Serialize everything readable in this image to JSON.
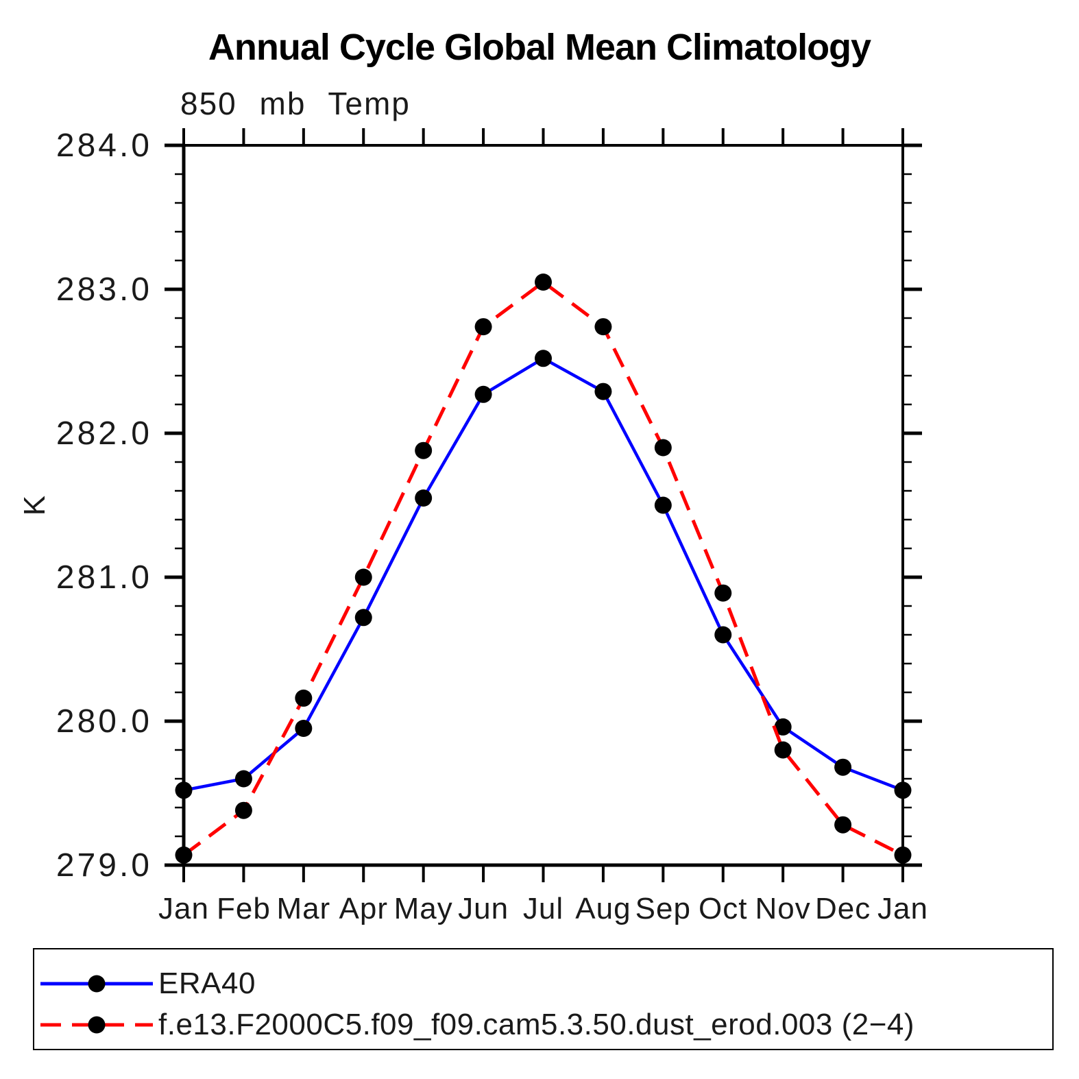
{
  "page": {
    "background_color": "#ffffff"
  },
  "chart_data": {
    "type": "line",
    "title": "Annual Cycle Global Mean Climatology",
    "subtitle": "850 mb Temp",
    "xlabel": "",
    "ylabel": "K",
    "categories": [
      "Jan",
      "Feb",
      "Mar",
      "Apr",
      "May",
      "Jun",
      "Jul",
      "Aug",
      "Sep",
      "Oct",
      "Nov",
      "Dec",
      "Jan"
    ],
    "series": [
      {
        "name": "ERA40",
        "color": "#0000ff",
        "line_style": "solid",
        "line_width": 4.5,
        "marker": "circle",
        "marker_color": "#000000",
        "values": [
          279.52,
          279.6,
          279.95,
          280.72,
          281.55,
          282.27,
          282.52,
          282.29,
          281.5,
          280.6,
          279.96,
          279.68,
          279.52
        ]
      },
      {
        "name": "f.e13.F2000C5.f09_f09.cam5.3.50.dust_erod.003 (2−4)",
        "color": "#ff0000",
        "line_style": "dashed",
        "line_width": 5,
        "marker": "circle",
        "marker_color": "#000000",
        "values": [
          279.07,
          279.38,
          280.16,
          281.0,
          281.88,
          282.74,
          283.05,
          282.74,
          281.9,
          280.89,
          279.8,
          279.28,
          279.07
        ]
      }
    ],
    "ylim": [
      279.0,
      284.0
    ],
    "ytick_major_step": 1.0,
    "ytick_minor_step": 0.2,
    "ytick_labels": [
      "279.0",
      "280.0",
      "281.0",
      "282.0",
      "283.0",
      "284.0"
    ],
    "grid": false,
    "axis_color": "#000000",
    "legend_position": "bottom-left-box"
  }
}
